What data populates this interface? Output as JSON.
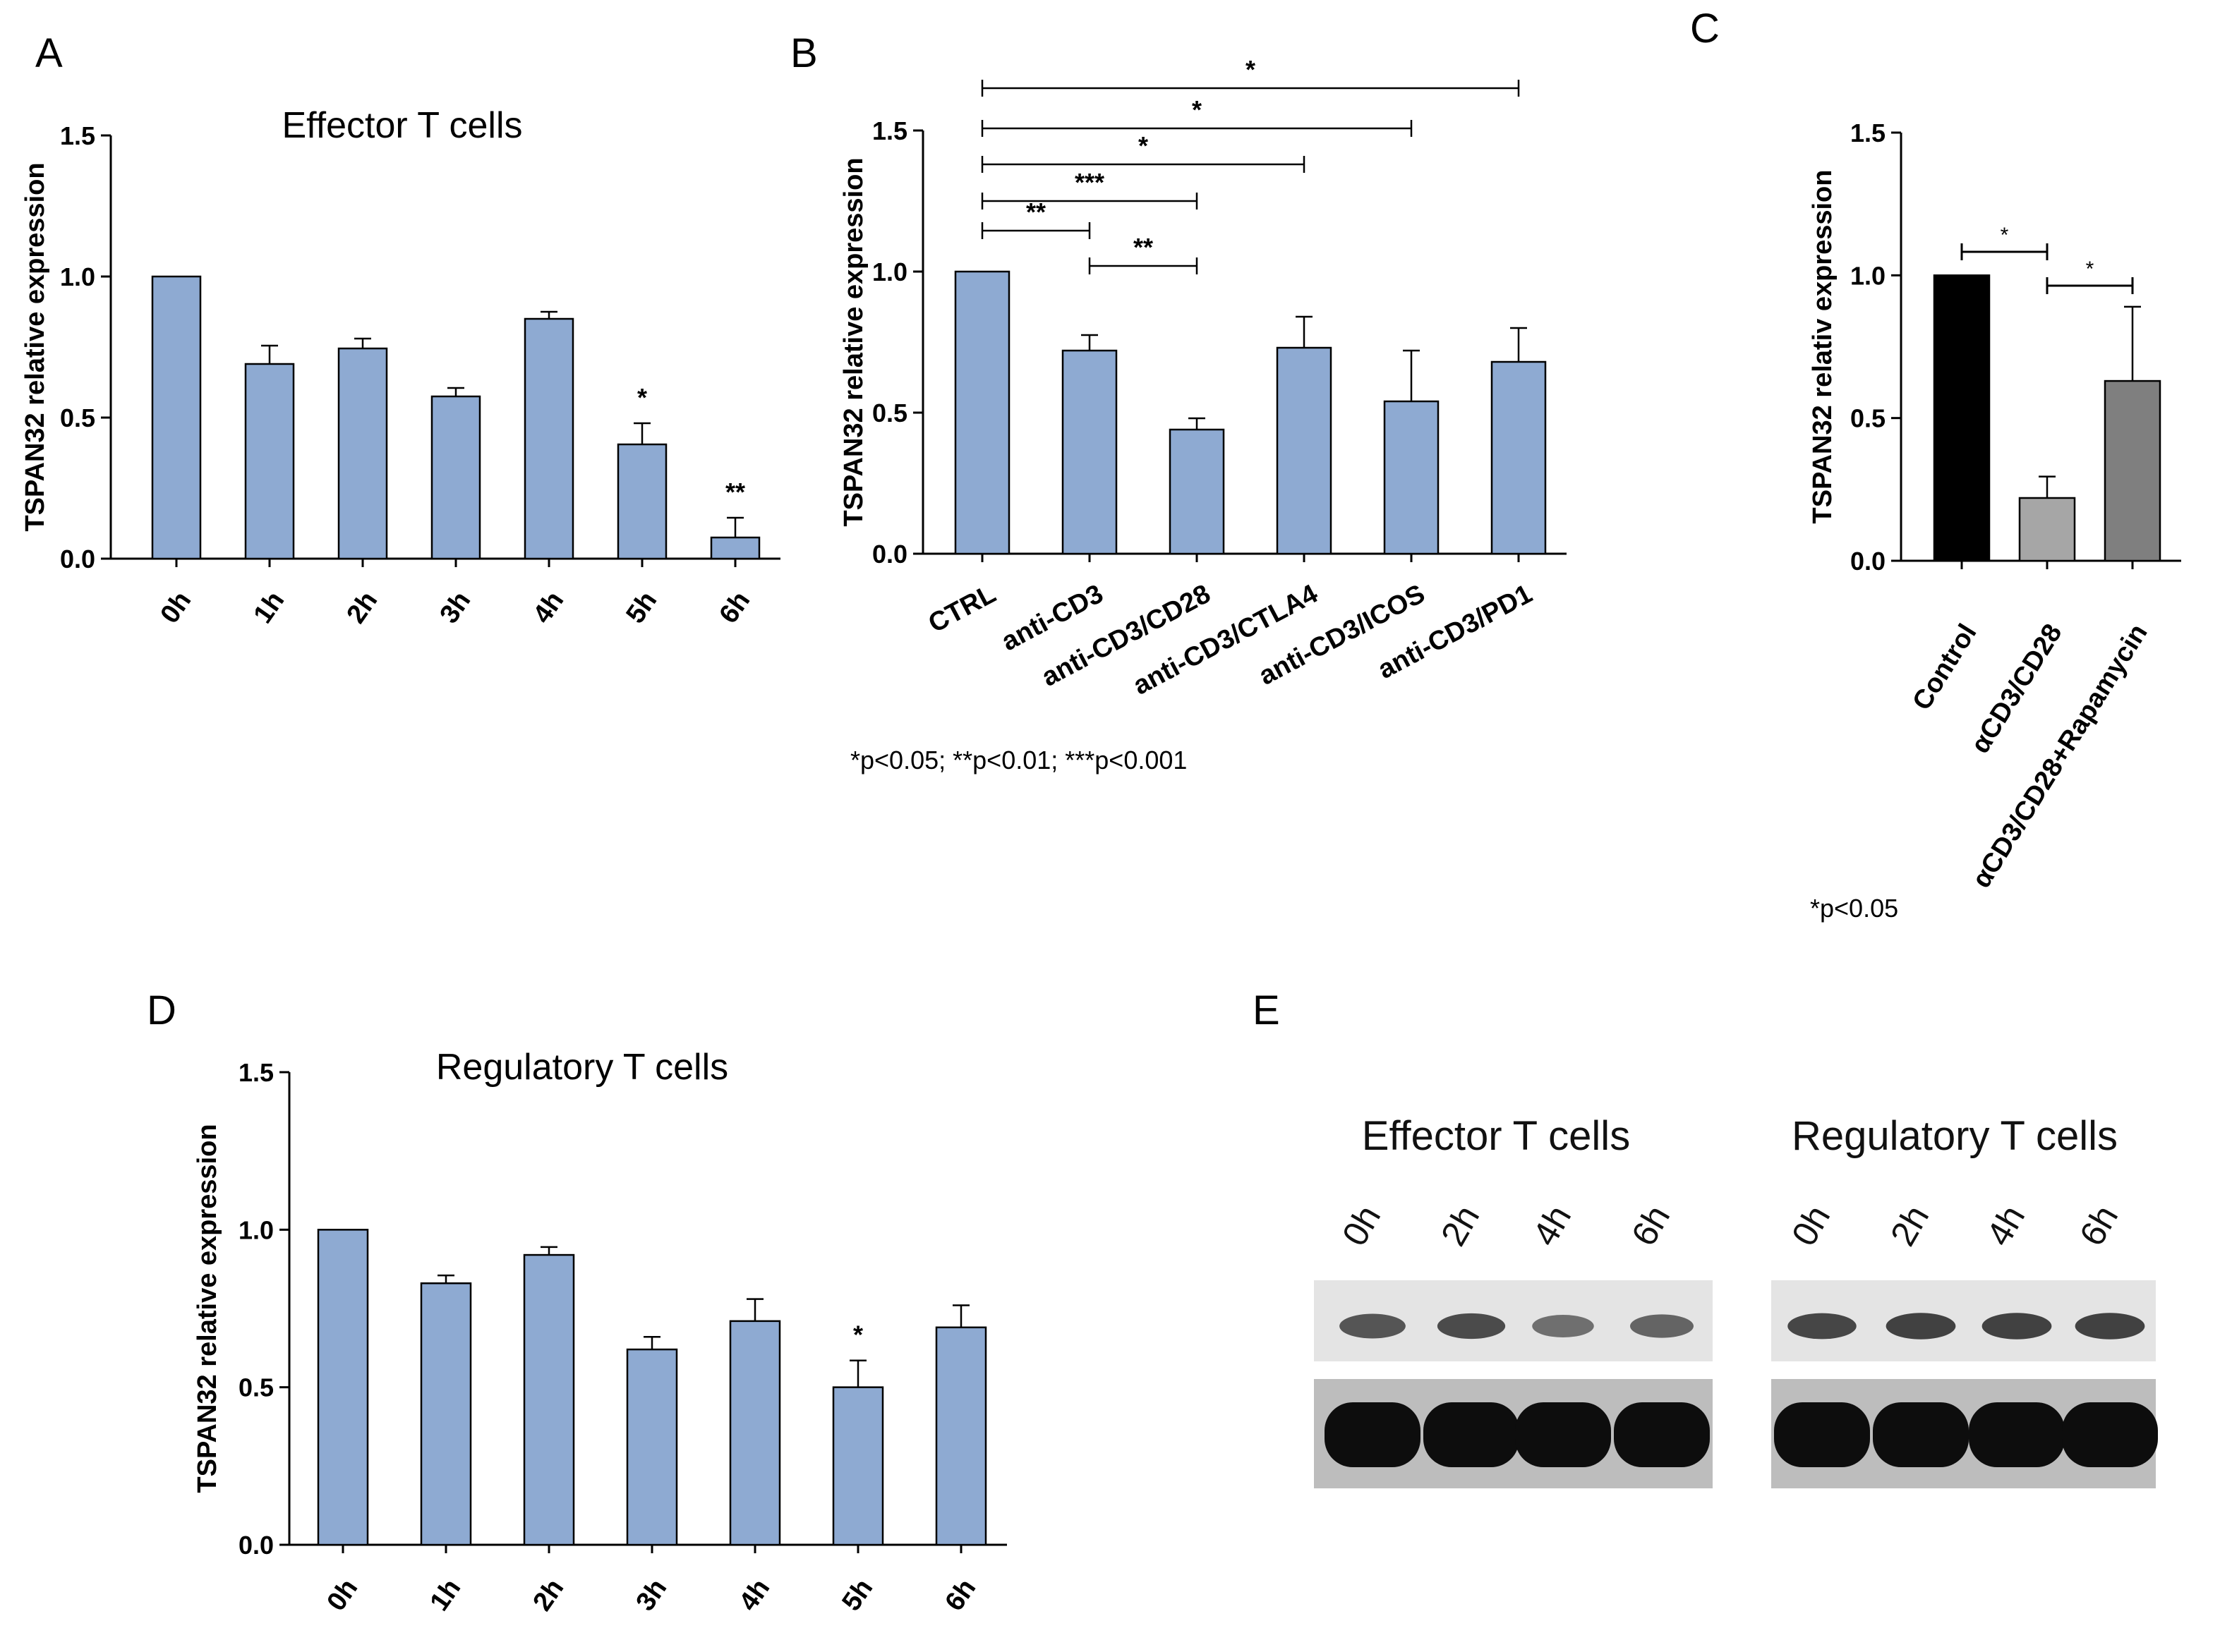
{
  "legend_bc": "*p<0.05; **p<0.01; ***p<0.001",
  "legend_c": "*p<0.05",
  "chart_data": [
    {
      "panel": "A",
      "type": "bar",
      "title": "Effector T cells",
      "xlabel": "",
      "ylabel": "TSPAN32 relative expression",
      "categories": [
        "0h",
        "1h",
        "2h",
        "3h",
        "4h",
        "5h",
        "6h"
      ],
      "values": [
        1.0,
        0.69,
        0.745,
        0.575,
        0.85,
        0.405,
        0.075
      ],
      "errors": [
        0,
        0.065,
        0.035,
        0.03,
        0.025,
        0.075,
        0.07
      ],
      "significance": [
        "",
        "",
        "",
        "",
        "",
        "*",
        "**"
      ],
      "ylim": [
        0,
        1.5
      ],
      "yticks": [
        "0.0",
        "0.5",
        "1.0",
        "1.5"
      ],
      "bar_color": "#8eaad2"
    },
    {
      "panel": "B",
      "type": "bar",
      "title": "",
      "xlabel": "",
      "ylabel": "TSPAN32 relative expression",
      "categories": [
        "CTRL",
        "anti-CD3",
        "anti-CD3/CD28",
        "anti-CD3/CTLA4",
        "anti-CD3/ICOS",
        "anti-CD3/PD1"
      ],
      "values": [
        1.0,
        0.72,
        0.44,
        0.73,
        0.54,
        0.68
      ],
      "errors": [
        0,
        0.055,
        0.04,
        0.11,
        0.18,
        0.12
      ],
      "ylim": [
        0,
        1.5
      ],
      "yticks": [
        "0.0",
        "0.5",
        "1.0",
        "1.5"
      ],
      "bar_color": "#8eaad2",
      "brackets": [
        {
          "from": 0,
          "to": 5,
          "label": "*"
        },
        {
          "from": 0,
          "to": 4,
          "label": "*"
        },
        {
          "from": 0,
          "to": 3,
          "label": "*"
        },
        {
          "from": 0,
          "to": 2,
          "label": "***"
        },
        {
          "from": 0,
          "to": 1,
          "label": "**"
        },
        {
          "from": 1,
          "to": 2,
          "label": "**"
        }
      ]
    },
    {
      "panel": "C",
      "type": "bar",
      "title": "",
      "xlabel": "",
      "ylabel": "TSPAN32 relativ expression",
      "categories": [
        "Control",
        "αCD3/CD28",
        "αCD3/CD28+Rapamycin"
      ],
      "values": [
        1.0,
        0.22,
        0.63
      ],
      "errors": [
        0,
        0.075,
        0.26
      ],
      "ylim": [
        0,
        1.5
      ],
      "yticks": [
        "0.0",
        "0.5",
        "1.0",
        "1.5"
      ],
      "bar_colors": [
        "#000000",
        "#a6a6a6",
        "#7f7f7f"
      ],
      "brackets": [
        {
          "from": 0,
          "to": 1,
          "label": "*"
        },
        {
          "from": 1,
          "to": 2,
          "label": "*"
        }
      ]
    },
    {
      "panel": "D",
      "type": "bar",
      "title": "Regulatory T cells",
      "xlabel": "",
      "ylabel": "TSPAN32 relative expression",
      "categories": [
        "0h",
        "1h",
        "2h",
        "3h",
        "4h",
        "5h",
        "6h"
      ],
      "values": [
        1.0,
        0.83,
        0.92,
        0.62,
        0.71,
        0.5,
        0.69
      ],
      "errors": [
        0,
        0.025,
        0.025,
        0.04,
        0.07,
        0.085,
        0.07
      ],
      "significance": [
        "",
        "",
        "",
        "",
        "",
        "*",
        ""
      ],
      "ylim": [
        0,
        1.5
      ],
      "yticks": [
        "0.0",
        "0.5",
        "1.0",
        "1.5"
      ],
      "bar_color": "#8eaad2"
    }
  ],
  "blot": {
    "panel": "E",
    "groups": [
      {
        "title": "Effector T cells",
        "lanes": [
          "0h",
          "2h",
          "4h",
          "6h"
        ],
        "band_intensity": [
          0.75,
          0.85,
          0.5,
          0.6
        ]
      },
      {
        "title": "Regulatory T cells",
        "lanes": [
          "0h",
          "2h",
          "4h",
          "6h"
        ],
        "band_intensity": [
          0.9,
          0.95,
          0.95,
          0.95
        ]
      }
    ]
  }
}
